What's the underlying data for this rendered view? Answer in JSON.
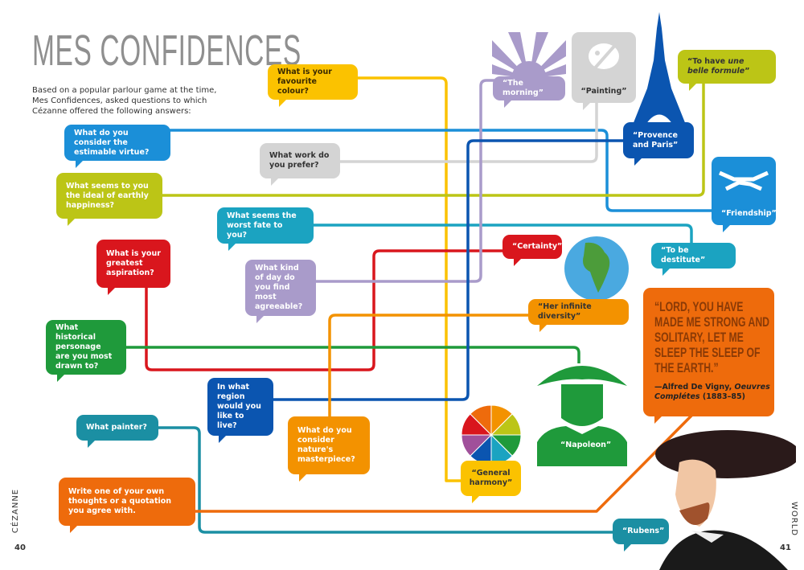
{
  "title": "MES CONFIDENCES",
  "intro": "Based on a popular parlour game at the time, Mes Confidences, asked questions to which Cézanne offered the following answers:",
  "questions": {
    "virtue": "What do you consider the estimable virtue?",
    "happiness": "What seems to you the ideal of earthly happiness?",
    "fate": "What seems the worst fate to you?",
    "aspiration": "What is your greatest aspiration?",
    "day": "What kind of day do you find most agreeable?",
    "personage": "What historical personage are you most drawn to?",
    "region": "In what region would you like to live?",
    "painter": "What painter?",
    "masterpiece": "What do you consider nature's masterpiece?",
    "thoughts": "Write one of your own thoughts or a quotation you agree with.",
    "colour": "What is your favourite colour?",
    "work": "What work do you prefer?"
  },
  "answers": {
    "morning": "“The morning”",
    "painting": "“Painting”",
    "provence": "“Provence and Paris”",
    "formule_a": "“To have ",
    "formule_b": "une belle formule",
    "formule_c": "”",
    "friendship": "“Friendship”",
    "destitute": "“To be destitute”",
    "certainty": "“Certainty”",
    "diversity": "“Her infinite diversity”",
    "napoleon": "“Napoleon”",
    "harmony": "“General harmony”",
    "rubens": "“Rubens”"
  },
  "quote": {
    "text": "“Lord, you have made me strong and solitary, let me sleep the sleep of the earth.”",
    "attr_a": "—Alfred De Vigny, ",
    "attr_b": "Oeuvres Complétes",
    "attr_c": " (1883–85)"
  },
  "footer": {
    "left_page": "40",
    "right_page": "41",
    "left_label": "CÉZANNE",
    "right_label": "WORLD"
  },
  "colors": {
    "light_blue": "#1b8fd8",
    "dark_blue": "#0b55b0",
    "yellow_green": "#bcc516",
    "teal": "#1ba3c1",
    "red": "#d9161d",
    "purple": "#a99bca",
    "green": "#1f9a3b",
    "orange": "#f39200",
    "yellow": "#fbc200",
    "gray": "#d4d4d4",
    "dark_teal": "#1b8fa3",
    "orange_red": "#ee6b0c"
  }
}
